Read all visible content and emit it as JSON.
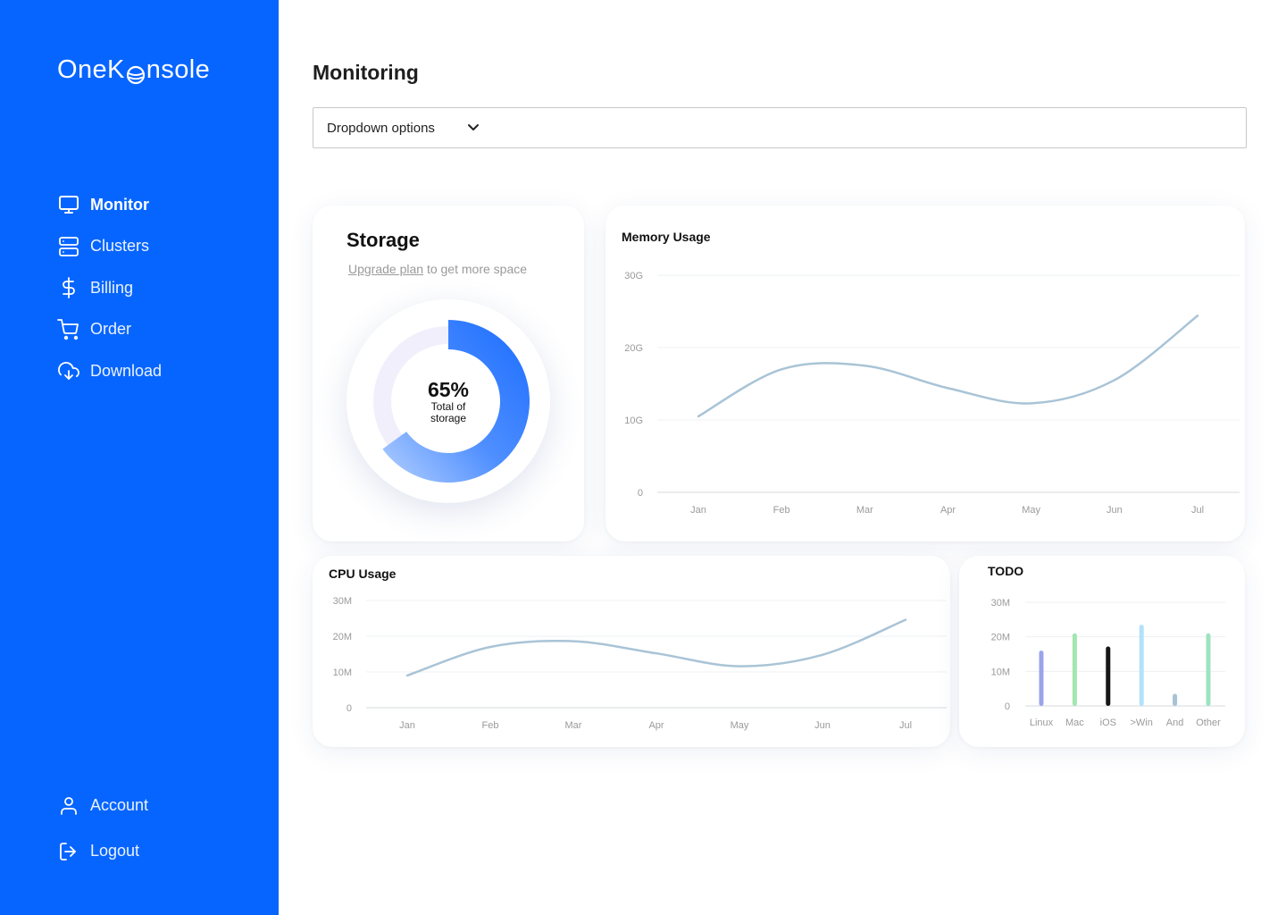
{
  "app": {
    "logo_pre": "OneK",
    "logo_post": "nsole"
  },
  "sidebar": {
    "items": [
      {
        "label": "Monitor",
        "icon": "monitor-icon",
        "active": true
      },
      {
        "label": "Clusters",
        "icon": "server-icon"
      },
      {
        "label": "Billing",
        "icon": "dollar-icon"
      },
      {
        "label": "Order",
        "icon": "cart-icon"
      },
      {
        "label": "Download",
        "icon": "cloud-download-icon"
      }
    ],
    "bottom": [
      {
        "label": "Account",
        "icon": "user-icon"
      },
      {
        "label": "Logout",
        "icon": "logout-icon"
      }
    ]
  },
  "main": {
    "title": "Monitoring",
    "dropdown": {
      "selected": "Dropdown options",
      "icon": "chevron-down-icon"
    }
  },
  "storage": {
    "title": "Storage",
    "upgrade_link": "Upgrade plan",
    "subtitle_rest": " to get more space",
    "percent_label": "65%",
    "percent": 65,
    "caption": "Total of storage"
  },
  "colors": {
    "accent": "#0765ff",
    "line": "#a9c4d6",
    "donut_track": "#f1effb"
  },
  "chart_data": [
    {
      "type": "line",
      "title": "Memory Usage",
      "x": [
        "Jan",
        "Feb",
        "Mar",
        "Apr",
        "May",
        "Jun",
        "Jul"
      ],
      "y_ticks": [
        "0",
        "10G",
        "20G",
        "30G"
      ],
      "ylim": [
        0,
        30
      ],
      "values": [
        10.5,
        17,
        17.5,
        14.4,
        12.3,
        15.5,
        24.4
      ],
      "grid": true,
      "legend": "none"
    },
    {
      "type": "line",
      "title": "CPU Usage",
      "x": [
        "Jan",
        "Feb",
        "Mar",
        "Apr",
        "May",
        "Jun",
        "Jul"
      ],
      "y_ticks": [
        "0",
        "10M",
        "20M",
        "30M"
      ],
      "ylim": [
        0,
        30
      ],
      "values": [
        9,
        17,
        18.6,
        15.2,
        11.6,
        14.8,
        24.6
      ],
      "grid": true,
      "legend": "none"
    },
    {
      "type": "bar",
      "title": "TODO",
      "categories": [
        "Linux",
        "Mac",
        "iOS",
        ">Win",
        "And",
        "Other"
      ],
      "y_ticks": [
        "0",
        "10M",
        "20M",
        "30M"
      ],
      "ylim": [
        0,
        30
      ],
      "values": [
        16,
        21,
        17.2,
        23.5,
        3.5,
        21
      ],
      "colors": [
        "#9aa4ec",
        "#a2e6b0",
        "#161616",
        "#b2e2fa",
        "#a6c2d6",
        "#9ee3c0"
      ],
      "grid": true,
      "legend": "none"
    }
  ]
}
